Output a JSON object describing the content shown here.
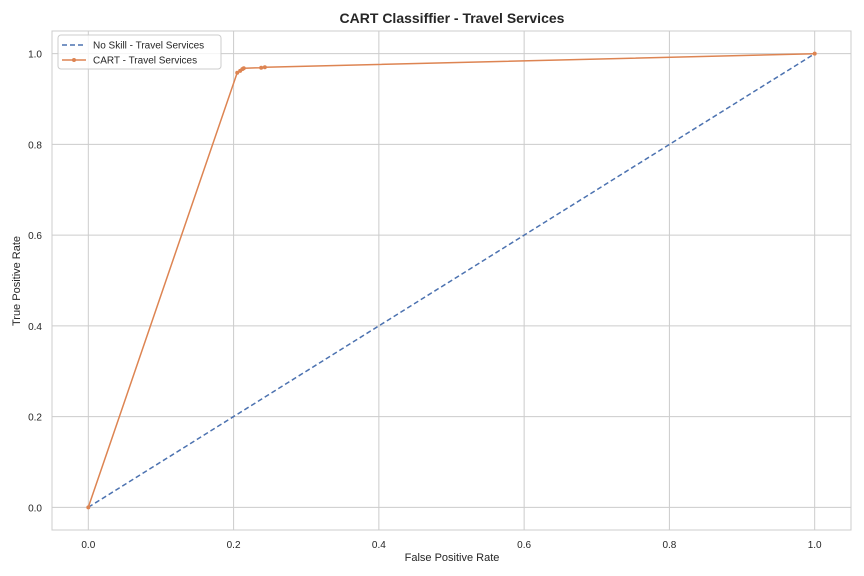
{
  "chart_data": {
    "type": "line",
    "title": "CART Classiffier - Travel Services",
    "xlabel": "False Positive Rate",
    "ylabel": "True Positive Rate",
    "xlim": [
      -0.05,
      1.05
    ],
    "ylim": [
      -0.05,
      1.05
    ],
    "xticks": [
      "0.0",
      "0.2",
      "0.4",
      "0.6",
      "0.8",
      "1.0"
    ],
    "yticks": [
      "0.0",
      "0.2",
      "0.4",
      "0.6",
      "0.8",
      "1.0"
    ],
    "grid": true,
    "legend_position": "top-left",
    "series": [
      {
        "name": "No Skill - Travel Services",
        "color": "#4c72b0",
        "style": "dashed",
        "marker": "none",
        "x": [
          0,
          1
        ],
        "y": [
          0,
          1
        ]
      },
      {
        "name": "CART - Travel Services",
        "color": "#dd8452",
        "style": "solid",
        "marker": "dot",
        "x": [
          0,
          0.205,
          0.209,
          0.212,
          0.214,
          0.238,
          0.243,
          1.0
        ],
        "y": [
          0,
          0.958,
          0.962,
          0.966,
          0.968,
          0.969,
          0.97,
          1.0
        ]
      }
    ]
  }
}
